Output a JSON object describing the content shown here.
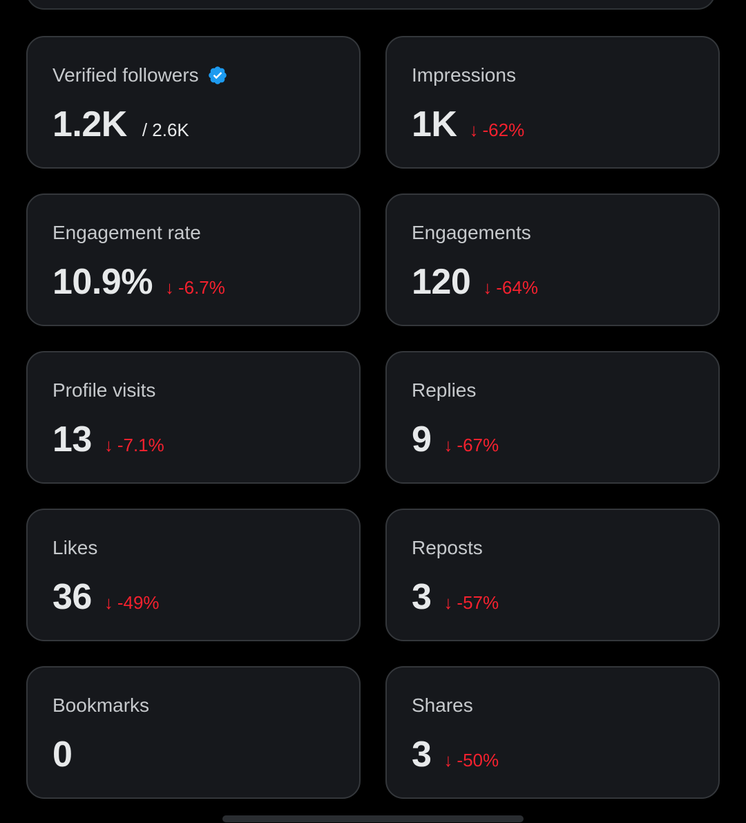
{
  "colors": {
    "background": "#000000",
    "card_background": "#16181c",
    "card_border": "#34373b",
    "label": "#c6c9cc",
    "value": "#e7e9ea",
    "negative": "#f4212e",
    "verified": "#1d9bf0"
  },
  "cards": [
    {
      "label": "Verified followers",
      "value": "1.2K",
      "sub": "/ 2.6K",
      "icon": "verified-badge-icon"
    },
    {
      "label": "Impressions",
      "value": "1K",
      "arrow": "↓",
      "change": "-62%"
    },
    {
      "label": "Engagement rate",
      "value": "10.9%",
      "arrow": "↓",
      "change": "-6.7%"
    },
    {
      "label": "Engagements",
      "value": "120",
      "arrow": "↓",
      "change": "-64%"
    },
    {
      "label": "Profile visits",
      "value": "13",
      "arrow": "↓",
      "change": "-7.1%"
    },
    {
      "label": "Replies",
      "value": "9",
      "arrow": "↓",
      "change": "-67%"
    },
    {
      "label": "Likes",
      "value": "36",
      "arrow": "↓",
      "change": "-49%"
    },
    {
      "label": "Reposts",
      "value": "3",
      "arrow": "↓",
      "change": "-57%"
    },
    {
      "label": "Bookmarks",
      "value": "0"
    },
    {
      "label": "Shares",
      "value": "3",
      "arrow": "↓",
      "change": "-50%"
    }
  ]
}
